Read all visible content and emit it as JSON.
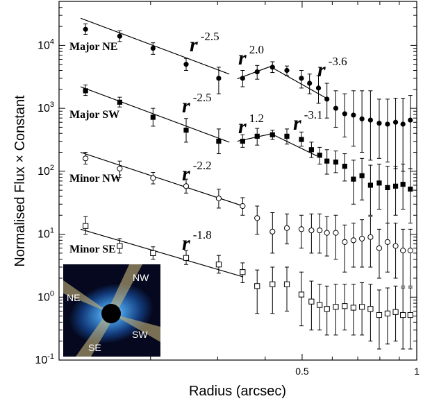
{
  "chart_data": {
    "type": "scatter",
    "xlabel": "Radius (arcsec)",
    "ylabel": "Normalised Flux × Constant",
    "x_scale": "log",
    "y_scale": "log",
    "xlim": [
      0.115,
      1.0
    ],
    "ylim": [
      0.1,
      50000
    ],
    "x_ticks": [
      {
        "value": 0.5,
        "label": "0.5"
      },
      {
        "value": 1,
        "label": "1"
      }
    ],
    "y_ticks": [
      {
        "value": 0.1,
        "base": "10",
        "exp": "-1"
      },
      {
        "value": 1,
        "base": "10",
        "exp": "0"
      },
      {
        "value": 10,
        "base": "10",
        "exp": "1"
      },
      {
        "value": 100,
        "base": "10",
        "exp": "2"
      },
      {
        "value": 1000,
        "base": "10",
        "exp": "3"
      },
      {
        "value": 10000,
        "base": "10",
        "exp": "4"
      }
    ],
    "grid": false,
    "legend": "none",
    "series": [
      {
        "name": "Major NE",
        "marker": "filled-circle",
        "points": [
          {
            "x": 0.135,
            "y": 18000,
            "lo": 15000,
            "hi": 22000
          },
          {
            "x": 0.166,
            "y": 14000,
            "lo": 11500,
            "hi": 17000
          },
          {
            "x": 0.203,
            "y": 9000,
            "lo": 7200,
            "hi": 11000
          },
          {
            "x": 0.248,
            "y": 5000,
            "lo": 4000,
            "hi": 6200
          },
          {
            "x": 0.302,
            "y": 3000,
            "lo": 1700,
            "hi": 4500
          },
          {
            "x": 0.349,
            "y": 3000,
            "lo": 2200,
            "hi": 4000
          },
          {
            "x": 0.381,
            "y": 3800,
            "lo": 2900,
            "hi": 4800
          },
          {
            "x": 0.418,
            "y": 4500,
            "lo": 3700,
            "hi": 5500
          },
          {
            "x": 0.456,
            "y": 4000,
            "lo": 3300,
            "hi": 4700
          },
          {
            "x": 0.498,
            "y": 3000,
            "lo": 2100,
            "hi": 4000
          },
          {
            "x": 0.523,
            "y": 2500,
            "lo": 1700,
            "hi": 3500
          },
          {
            "x": 0.552,
            "y": 2100,
            "lo": 1200,
            "hi": 3300
          },
          {
            "x": 0.581,
            "y": 1400,
            "lo": 700,
            "hi": 2500
          },
          {
            "x": 0.613,
            "y": 1000,
            "lo": 500,
            "hi": 1900
          },
          {
            "x": 0.647,
            "y": 820,
            "lo": 350,
            "hi": 1700
          },
          {
            "x": 0.682,
            "y": 780,
            "lo": 250,
            "hi": 1900
          },
          {
            "x": 0.718,
            "y": 680,
            "lo": 200,
            "hi": 1900
          },
          {
            "x": 0.756,
            "y": 650,
            "lo": 150,
            "hi": 1900
          },
          {
            "x": 0.797,
            "y": 580,
            "lo": 160,
            "hi": 1400
          },
          {
            "x": 0.838,
            "y": 560,
            "lo": 140,
            "hi": 1400
          },
          {
            "x": 0.88,
            "y": 600,
            "lo": 110,
            "hi": 1450
          },
          {
            "x": 0.92,
            "y": 560,
            "lo": 100,
            "hi": 1450
          },
          {
            "x": 0.962,
            "y": 650,
            "lo": 110,
            "hi": 1600
          }
        ]
      },
      {
        "name": "Major SW",
        "marker": "filled-square",
        "points": [
          {
            "x": 0.135,
            "y": 1900,
            "lo": 1600,
            "hi": 2350
          },
          {
            "x": 0.166,
            "y": 1250,
            "lo": 1050,
            "hi": 1500
          },
          {
            "x": 0.203,
            "y": 720,
            "lo": 520,
            "hi": 1000
          },
          {
            "x": 0.248,
            "y": 450,
            "lo": 290,
            "hi": 690
          },
          {
            "x": 0.302,
            "y": 300,
            "lo": 190,
            "hi": 470
          },
          {
            "x": 0.349,
            "y": 300,
            "lo": 240,
            "hi": 380
          },
          {
            "x": 0.381,
            "y": 360,
            "lo": 260,
            "hi": 480
          },
          {
            "x": 0.418,
            "y": 380,
            "lo": 320,
            "hi": 450
          },
          {
            "x": 0.456,
            "y": 360,
            "lo": 270,
            "hi": 470
          },
          {
            "x": 0.498,
            "y": 320,
            "lo": 250,
            "hi": 420
          },
          {
            "x": 0.529,
            "y": 220,
            "lo": 165,
            "hi": 290
          },
          {
            "x": 0.556,
            "y": 180,
            "lo": 130,
            "hi": 240
          },
          {
            "x": 0.581,
            "y": 145,
            "lo": 90,
            "hi": 220
          },
          {
            "x": 0.613,
            "y": 140,
            "lo": 95,
            "hi": 210
          },
          {
            "x": 0.647,
            "y": 120,
            "lo": 70,
            "hi": 190
          },
          {
            "x": 0.682,
            "y": 75,
            "lo": 30,
            "hi": 150
          },
          {
            "x": 0.718,
            "y": 85,
            "lo": 35,
            "hi": 160
          },
          {
            "x": 0.756,
            "y": 60,
            "lo": 20,
            "hi": 125
          },
          {
            "x": 0.797,
            "y": 65,
            "lo": 25,
            "hi": 130
          },
          {
            "x": 0.838,
            "y": 55,
            "lo": 15,
            "hi": 120
          },
          {
            "x": 0.88,
            "y": 58,
            "lo": 20,
            "hi": 120
          },
          {
            "x": 0.92,
            "y": 62,
            "lo": 25,
            "hi": 130
          },
          {
            "x": 0.962,
            "y": 52,
            "lo": 15,
            "hi": 110
          }
        ]
      },
      {
        "name": "Minor NW",
        "marker": "open-circle",
        "points": [
          {
            "x": 0.135,
            "y": 160,
            "lo": 130,
            "hi": 200
          },
          {
            "x": 0.166,
            "y": 110,
            "lo": 80,
            "hi": 145
          },
          {
            "x": 0.203,
            "y": 78,
            "lo": 63,
            "hi": 96
          },
          {
            "x": 0.248,
            "y": 58,
            "lo": 45,
            "hi": 75
          },
          {
            "x": 0.302,
            "y": 37,
            "lo": 26,
            "hi": 52
          },
          {
            "x": 0.349,
            "y": 28,
            "lo": 20,
            "hi": 38
          },
          {
            "x": 0.381,
            "y": 18,
            "lo": 10,
            "hi": 28
          },
          {
            "x": 0.418,
            "y": 11,
            "lo": 5,
            "hi": 22
          },
          {
            "x": 0.456,
            "y": 12.5,
            "lo": 7,
            "hi": 21
          },
          {
            "x": 0.498,
            "y": 12,
            "lo": 6,
            "hi": 20
          },
          {
            "x": 0.529,
            "y": 11.5,
            "lo": 5,
            "hi": 21
          },
          {
            "x": 0.556,
            "y": 11.5,
            "lo": 5,
            "hi": 21
          },
          {
            "x": 0.581,
            "y": 10.5,
            "lo": 4.5,
            "hi": 19
          },
          {
            "x": 0.613,
            "y": 10.5,
            "lo": 4,
            "hi": 20
          },
          {
            "x": 0.647,
            "y": 7.5,
            "lo": 2.5,
            "hi": 14
          },
          {
            "x": 0.682,
            "y": 8,
            "lo": 3,
            "hi": 15
          },
          {
            "x": 0.718,
            "y": 8.5,
            "lo": 3,
            "hi": 17
          },
          {
            "x": 0.756,
            "y": 9,
            "lo": 3,
            "hi": 19
          },
          {
            "x": 0.797,
            "y": 6,
            "lo": 2,
            "hi": 12
          },
          {
            "x": 0.838,
            "y": 7.5,
            "lo": 2.5,
            "hi": 15
          },
          {
            "x": 0.88,
            "y": 6.5,
            "lo": 2,
            "hi": 15
          },
          {
            "x": 0.92,
            "y": 5.5,
            "lo": 1.5,
            "hi": 12
          },
          {
            "x": 0.962,
            "y": 5.5,
            "lo": 1.5,
            "hi": 12
          }
        ]
      },
      {
        "name": "Minor SE",
        "marker": "open-square",
        "points": [
          {
            "x": 0.135,
            "y": 13.5,
            "lo": 10,
            "hi": 19
          },
          {
            "x": 0.166,
            "y": 6.5,
            "lo": 5,
            "hi": 8.5
          },
          {
            "x": 0.203,
            "y": 5,
            "lo": 4,
            "hi": 6.3
          },
          {
            "x": 0.248,
            "y": 4.2,
            "lo": 3.3,
            "hi": 5.5
          },
          {
            "x": 0.302,
            "y": 3.3,
            "lo": 2.4,
            "hi": 4.6
          },
          {
            "x": 0.349,
            "y": 2.5,
            "lo": 1.7,
            "hi": 3.5
          },
          {
            "x": 0.381,
            "y": 1.5,
            "lo": 0.55,
            "hi": 2.7
          },
          {
            "x": 0.418,
            "y": 1.6,
            "lo": 0.55,
            "hi": 3
          },
          {
            "x": 0.456,
            "y": 1.6,
            "lo": 0.6,
            "hi": 3
          },
          {
            "x": 0.498,
            "y": 1.1,
            "lo": 0.35,
            "hi": 2.5
          },
          {
            "x": 0.529,
            "y": 0.85,
            "lo": 0.3,
            "hi": 1.8
          },
          {
            "x": 0.556,
            "y": 0.75,
            "lo": 0.3,
            "hi": 1.6
          },
          {
            "x": 0.581,
            "y": 0.65,
            "lo": 0.25,
            "hi": 1.5
          },
          {
            "x": 0.613,
            "y": 0.7,
            "lo": 0.25,
            "hi": 1.6
          },
          {
            "x": 0.647,
            "y": 0.72,
            "lo": 0.3,
            "hi": 1.6
          },
          {
            "x": 0.682,
            "y": 0.68,
            "lo": 0.25,
            "hi": 1.6
          },
          {
            "x": 0.718,
            "y": 0.7,
            "lo": 0.25,
            "hi": 1.7
          },
          {
            "x": 0.756,
            "y": 0.65,
            "lo": 0.2,
            "hi": 1.6
          },
          {
            "x": 0.797,
            "y": 0.52,
            "lo": 0.15,
            "hi": 1.3
          },
          {
            "x": 0.838,
            "y": 0.55,
            "lo": 0.18,
            "hi": 1.4
          },
          {
            "x": 0.88,
            "y": 0.58,
            "lo": 0.2,
            "hi": 1.5
          },
          {
            "x": 0.92,
            "y": 0.52,
            "lo": 0.15,
            "hi": 1.4
          },
          {
            "x": 0.962,
            "y": 0.52,
            "lo": 0.15,
            "hi": 1.4
          }
        ]
      }
    ],
    "fit_lines": [
      {
        "series": "Major NE",
        "x": [
          0.131,
          0.322
        ],
        "y": [
          27000,
          3500
        ]
      },
      {
        "series": "Major NE",
        "x": [
          0.338,
          0.416
        ],
        "y": [
          2950,
          4700
        ]
      },
      {
        "series": "Major NE",
        "x": [
          0.418,
          0.58
        ],
        "y": [
          4400,
          1440
        ]
      },
      {
        "series": "Major SW",
        "x": [
          0.131,
          0.322
        ],
        "y": [
          2200,
          290
        ]
      },
      {
        "series": "Major SW",
        "x": [
          0.338,
          0.416
        ],
        "y": [
          300,
          395
        ]
      },
      {
        "series": "Major SW",
        "x": [
          0.418,
          0.547
        ],
        "y": [
          385,
          175
        ]
      },
      {
        "series": "Minor NW",
        "x": [
          0.131,
          0.35
        ],
        "y": [
          200,
          28
        ]
      },
      {
        "series": "Minor SE",
        "x": [
          0.131,
          0.35
        ],
        "y": [
          12,
          2.1
        ]
      }
    ],
    "annotations": [
      {
        "text": "Major NE"
      },
      {
        "text": "Major SW"
      },
      {
        "text": "Minor NW"
      },
      {
        "text": "Minor SE"
      },
      {
        "base": "r",
        "exp": "-2.5"
      },
      {
        "base": "r",
        "exp": "2.0"
      },
      {
        "base": "r",
        "exp": "-3.6"
      },
      {
        "base": "r",
        "exp": "-2.5"
      },
      {
        "base": "r",
        "exp": "1.2"
      },
      {
        "base": "r",
        "exp": "-3.1"
      },
      {
        "base": "r",
        "exp": "-2.2"
      },
      {
        "base": "r",
        "exp": "-1.8"
      }
    ],
    "inset": {
      "labels": [
        "NW",
        "NE",
        "SW",
        "SE"
      ],
      "colors": {
        "background": "#05081e",
        "beam": "#c5b47a",
        "glow": "#3f8fd6",
        "core": "#000000"
      }
    }
  }
}
